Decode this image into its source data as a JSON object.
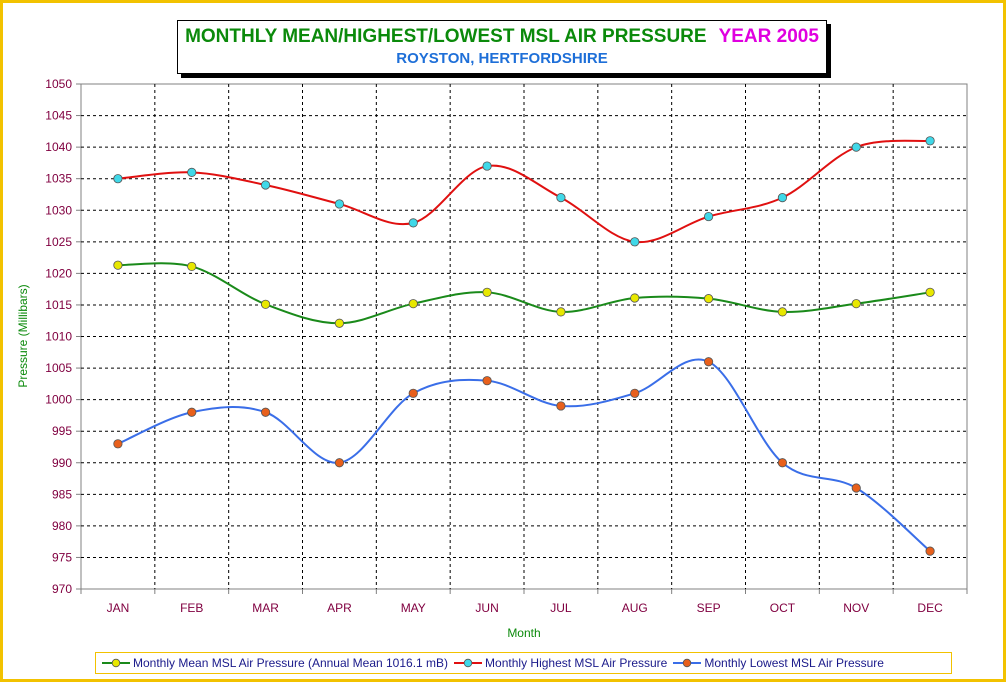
{
  "title": {
    "main": "MONTHLY MEAN/HIGHEST/LOWEST MSL AIR PRESSURE",
    "year": "YEAR 2005",
    "subtitle": "ROYSTON, HERTFORDSHIRE"
  },
  "colors": {
    "title": "#0b8a0b",
    "year": "#e000e0",
    "subtitle": "#1e6fd8",
    "frame_border": "#f2c200",
    "tick_text": "#800040",
    "axis_label": "#0b8a0b"
  },
  "chart_data": {
    "type": "line",
    "categories": [
      "JAN",
      "FEB",
      "MAR",
      "APR",
      "MAY",
      "JUN",
      "JUL",
      "AUG",
      "SEP",
      "OCT",
      "NOV",
      "DEC"
    ],
    "xlabel": "Month",
    "ylabel": "Pressure (Millibars)",
    "ylim": [
      970,
      1050
    ],
    "ystep": 5,
    "grid": true,
    "smooth": true,
    "legend_position": "bottom",
    "series": [
      {
        "name": "Monthly Mean MSL Air Pressure (Annual Mean 1016.1 mB)",
        "line_color": "#1a8a1a",
        "marker_color": "#e8e800",
        "values": [
          1021.3,
          1021.1,
          1015.1,
          1012.1,
          1015.2,
          1017.0,
          1013.9,
          1016.1,
          1016.0,
          1013.9,
          1015.2,
          1017.0
        ]
      },
      {
        "name": "Monthly Highest MSL Air Pressure",
        "line_color": "#e01010",
        "marker_color": "#40d8e8",
        "values": [
          1035.0,
          1036.0,
          1034.0,
          1031.0,
          1028.0,
          1037.0,
          1032.0,
          1025.0,
          1029.0,
          1032.0,
          1040.0,
          1041.0
        ]
      },
      {
        "name": "Monthly Lowest MSL Air Pressure",
        "line_color": "#3a6ee8",
        "marker_color": "#e8601c",
        "values": [
          993.0,
          998.0,
          998.0,
          990.0,
          1001.0,
          1003.0,
          999.0,
          1001.0,
          1006.0,
          990.0,
          986.0,
          976.0
        ]
      }
    ]
  }
}
